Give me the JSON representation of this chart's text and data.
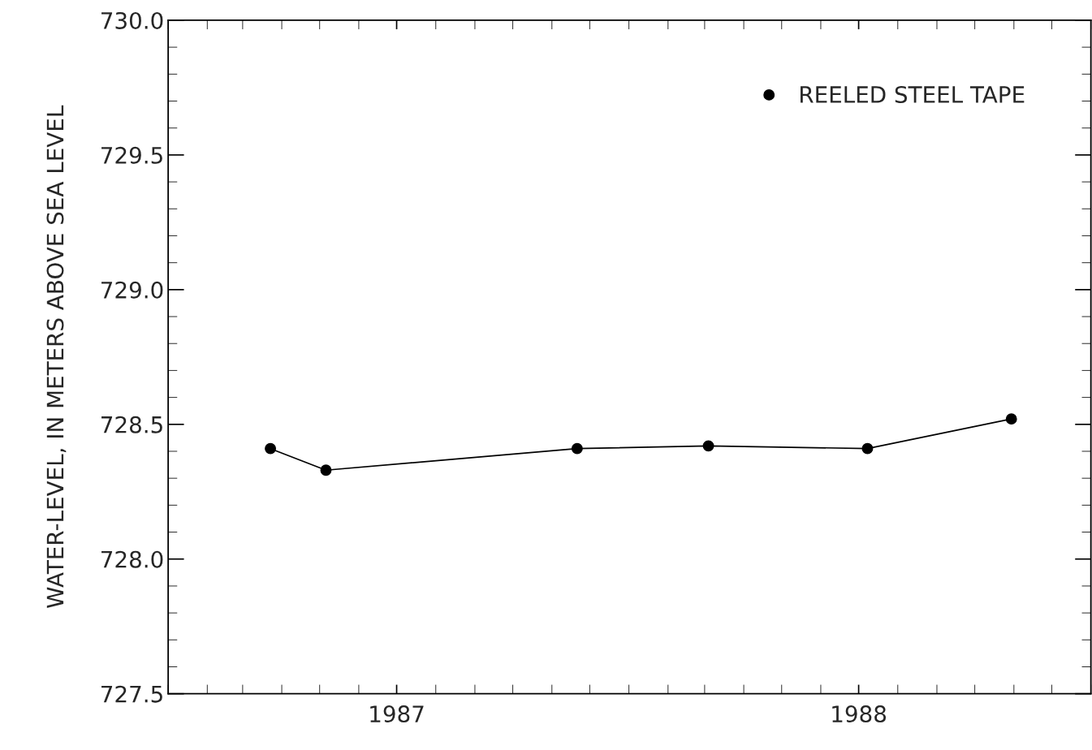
{
  "chart_data": {
    "type": "line",
    "ylabel": "WATER-LEVEL, IN METERS ABOVE SEA LEVEL",
    "x": [
      "1987-03-23",
      "1987-05-06",
      "1987-11-21",
      "1988-03-04",
      "1988-07-08",
      "1988-10-30"
    ],
    "series": [
      {
        "name": "REELED STEEL TAPE",
        "color": "#000000",
        "values": [
          728.41,
          728.33,
          728.41,
          728.42,
          728.41,
          728.52
        ]
      }
    ],
    "xlim": [
      "1987-01-01",
      "1989-01-01"
    ],
    "xticks": [
      {
        "value": "1987-07-01",
        "label": "1987"
      },
      {
        "value": "1988-07-01",
        "label": "1988"
      }
    ],
    "ylim": [
      727.5,
      730.0
    ],
    "yticks": [
      {
        "value": 727.5,
        "label": "727.5"
      },
      {
        "value": 728.0,
        "label": "728.0"
      },
      {
        "value": 728.5,
        "label": "728.5"
      },
      {
        "value": 729.0,
        "label": "729.0"
      },
      {
        "value": 729.5,
        "label": "729.5"
      },
      {
        "value": 730.0,
        "label": "730.0"
      }
    ],
    "grid": false,
    "legend": "top right",
    "marker": "circle",
    "line_style": "solid"
  }
}
